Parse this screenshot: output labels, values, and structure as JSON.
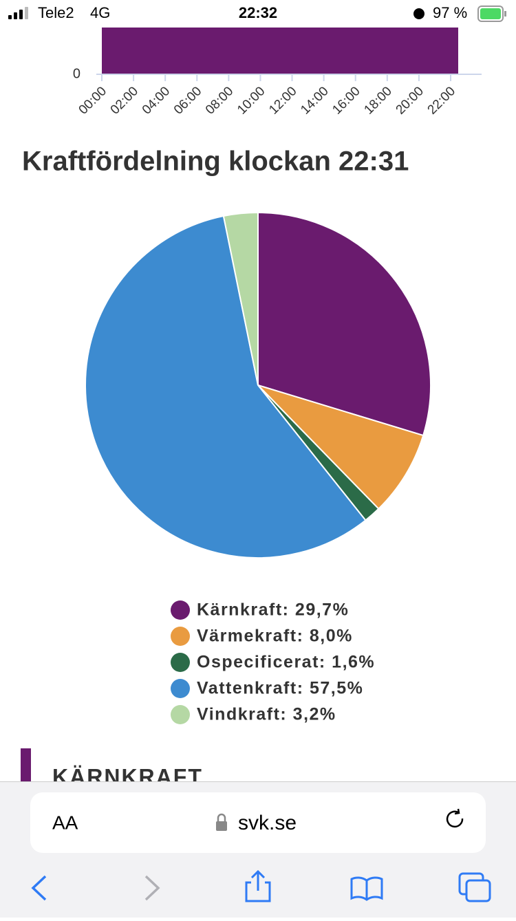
{
  "status_bar": {
    "carrier": "Tele2",
    "network": "4G",
    "time": "22:32",
    "battery": "97 %"
  },
  "chart_data": [
    {
      "type": "bar",
      "categories": [
        "00:00",
        "02:00",
        "04:00",
        "06:00",
        "08:00",
        "10:00",
        "12:00",
        "14:00",
        "16:00",
        "18:00",
        "20:00",
        "22:00"
      ],
      "yticks": [
        0
      ],
      "color": "#6a1b6e"
    },
    {
      "type": "pie",
      "title": "Kraftfördelning klockan 22:31",
      "categories": [
        "Kärnkraft: 29,7%",
        "Värmekraft: 8,0%",
        "Ospecificerat: 1,6%",
        "Vattenkraft: 57,5%",
        "Vindkraft: 3,2%"
      ],
      "values": [
        29.7,
        8.0,
        1.6,
        57.5,
        3.2
      ],
      "colors": [
        "#6a1b6e",
        "#e99b40",
        "#2b6b48",
        "#3d8bd0",
        "#b5d8a4"
      ]
    }
  ],
  "section": {
    "heading": "KÄRNKRAFT"
  },
  "browser": {
    "text_size": "AA",
    "url": "svk.se"
  }
}
